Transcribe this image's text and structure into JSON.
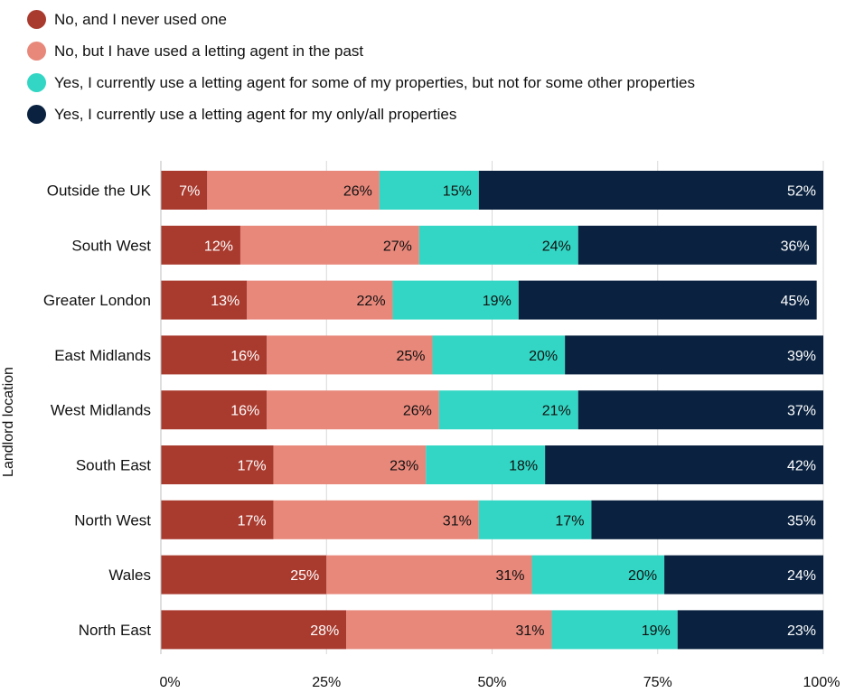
{
  "chart_data": {
    "type": "bar",
    "orientation": "horizontal",
    "stacked": true,
    "ylabel": "Landlord location",
    "xlabel": "",
    "xlim": [
      0,
      100
    ],
    "xticks": [
      "0%",
      "25%",
      "50%",
      "75%",
      "100%"
    ],
    "legend_position": "top",
    "grid": true,
    "categories": [
      "Outside the UK",
      "South West",
      "Greater London",
      "East Midlands",
      "West Midlands",
      "South East",
      "North West",
      "Wales",
      "North East"
    ],
    "series": [
      {
        "name": "No, and I never used one",
        "color": "#a93a2e",
        "label_color": "#ffffff",
        "values": [
          7,
          12,
          13,
          16,
          16,
          17,
          17,
          25,
          28
        ]
      },
      {
        "name": "No, but I have used a letting agent in the past",
        "color": "#e8887b",
        "label_color": "#111111",
        "values": [
          26,
          27,
          22,
          25,
          26,
          23,
          31,
          31,
          31
        ]
      },
      {
        "name": "Yes, I currently use a letting agent for some of my properties, but not for some other properties",
        "color": "#33d6c4",
        "label_color": "#111111",
        "values": [
          15,
          24,
          19,
          20,
          21,
          18,
          17,
          20,
          19
        ]
      },
      {
        "name": "Yes, I currently use a letting agent for my only/all properties",
        "color": "#0a2240",
        "label_color": "#ffffff",
        "values": [
          52,
          36,
          45,
          39,
          37,
          42,
          35,
          24,
          23
        ]
      }
    ]
  }
}
